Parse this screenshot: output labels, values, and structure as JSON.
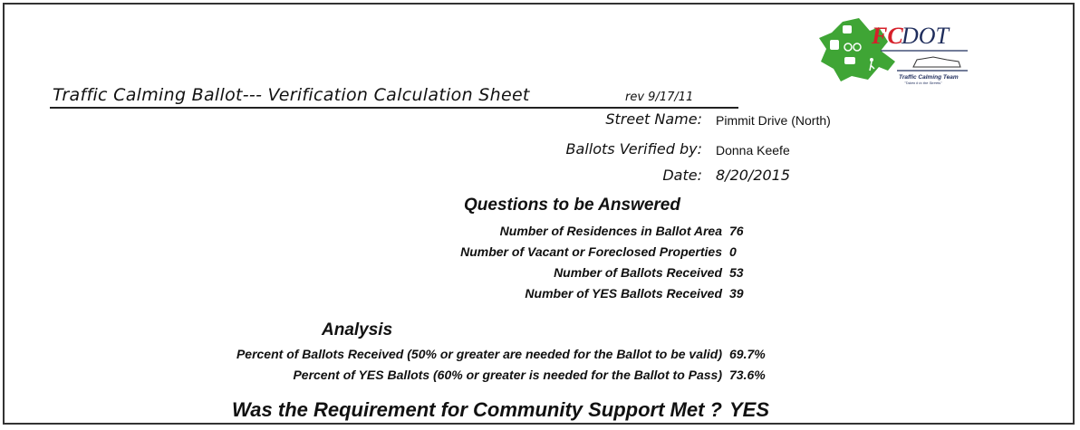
{
  "header": {
    "title": "Traffic Calming Ballot--- Verification Calculation Sheet",
    "revision": "rev 9/17/11",
    "logo": {
      "text": "FCDOT",
      "tagline": "Traffic Calming Team",
      "slogan": "\"Taken it to the Streets\"",
      "colors": {
        "green": "#3fa535",
        "red": "#d6202a",
        "navy": "#1f2d5c"
      }
    }
  },
  "fields": {
    "street_name_label": "Street Name:",
    "street_name": "Pimmit Drive (North)",
    "verified_by_label": "Ballots Verified by:",
    "verified_by": "Donna Keefe",
    "date_label": "Date:",
    "date": "8/20/2015"
  },
  "questions": {
    "heading": "Questions to be Answered",
    "items": [
      {
        "label": "Number of Residences in Ballot Area",
        "value": "76"
      },
      {
        "label": "Number of Vacant or Foreclosed Properties",
        "value": "0"
      },
      {
        "label": "Number of Ballots Received",
        "value": "53"
      },
      {
        "label": "Number of YES Ballots Received",
        "value": "39"
      }
    ]
  },
  "analysis": {
    "heading": "Analysis",
    "items": [
      {
        "label": "Percent of Ballots Received (50% or greater are needed for the Ballot to be valid)",
        "value": "69.7%"
      },
      {
        "label": "Percent of YES Ballots (60% or greater is needed for the Ballot to Pass)",
        "value": "73.6%"
      }
    ]
  },
  "result": {
    "question": "Was the Requirement for Community Support Met ?",
    "answer": "YES"
  }
}
